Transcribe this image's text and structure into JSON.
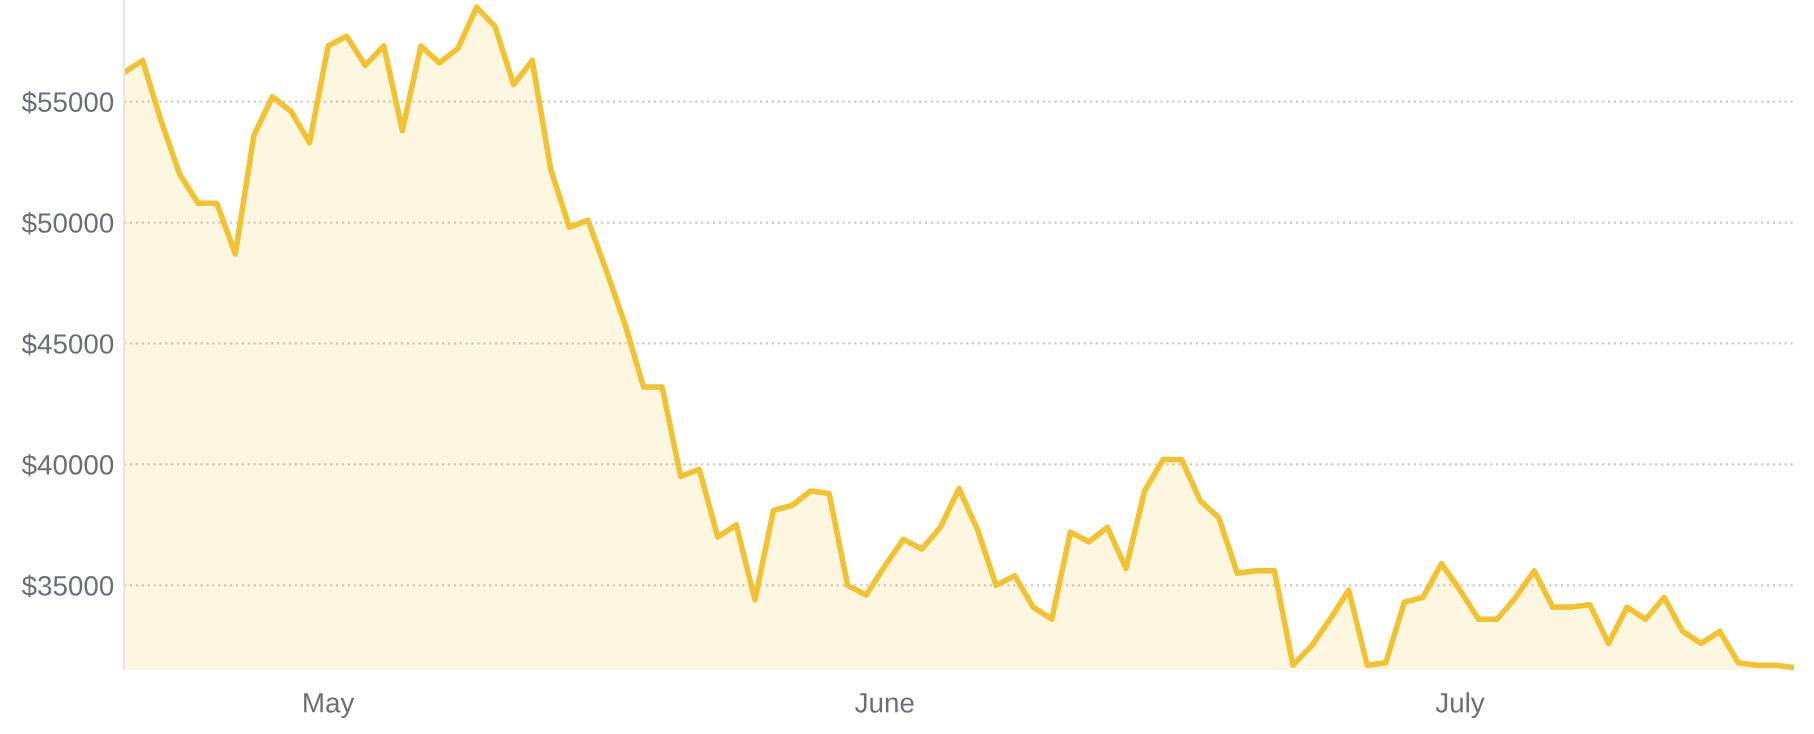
{
  "chart_data": {
    "type": "area",
    "categories": [
      null,
      null,
      null,
      null,
      null,
      null,
      null,
      null,
      null,
      null,
      null,
      "May",
      null,
      null,
      null,
      null,
      null,
      null,
      null,
      null,
      null,
      null,
      null,
      null,
      null,
      null,
      null,
      null,
      null,
      null,
      null,
      null,
      null,
      null,
      null,
      null,
      null,
      null,
      null,
      null,
      null,
      "June",
      null,
      null,
      null,
      null,
      null,
      null,
      null,
      null,
      null,
      null,
      null,
      null,
      null,
      null,
      null,
      null,
      null,
      null,
      null,
      null,
      null,
      null,
      null,
      null,
      null,
      null,
      null,
      null,
      null,
      null,
      "July",
      null,
      null,
      null,
      null,
      null,
      null,
      null,
      null,
      null,
      null,
      null,
      null,
      null,
      null,
      null,
      null,
      null,
      null
    ],
    "series": [
      {
        "color": "#f2c230",
        "values": [
          56200,
          56700,
          54200,
          52000,
          50800,
          50800,
          48700,
          53600,
          55200,
          54600,
          53300,
          57300,
          57700,
          56500,
          57300,
          53800,
          57300,
          56600,
          57200,
          58900,
          58100,
          55700,
          56700,
          52200,
          49800,
          50100,
          48000,
          45800,
          43200,
          43200,
          39500,
          39800,
          37000,
          37500,
          34400,
          38100,
          38300,
          38900,
          38800,
          35000,
          34600,
          35800,
          36900,
          36500,
          37400,
          39000,
          37300,
          35000,
          35400,
          34100,
          33600,
          37200,
          36800,
          37400,
          35700,
          38900,
          40200,
          40200,
          38500,
          37800,
          35500,
          35600,
          35600,
          31700,
          32500,
          33600,
          34800,
          31700,
          31800,
          34300,
          34500,
          35900,
          34800,
          33600,
          33600,
          34500,
          35600,
          34100,
          34100,
          34200,
          32600,
          34100,
          33600,
          34500,
          33100,
          32600,
          33100,
          31800,
          31700,
          31700,
          31600
        ]
      }
    ],
    "ylim": [
      31500,
      59200
    ],
    "yticks": [
      {
        "value": 35000,
        "label": "$35000"
      },
      {
        "value": 40000,
        "label": "$40000"
      },
      {
        "value": 45000,
        "label": "$45000"
      },
      {
        "value": 50000,
        "label": "$50000"
      },
      {
        "value": 55000,
        "label": "$55000"
      }
    ],
    "grid": "y",
    "legend": false,
    "marker": "none",
    "line_style": "solid"
  }
}
